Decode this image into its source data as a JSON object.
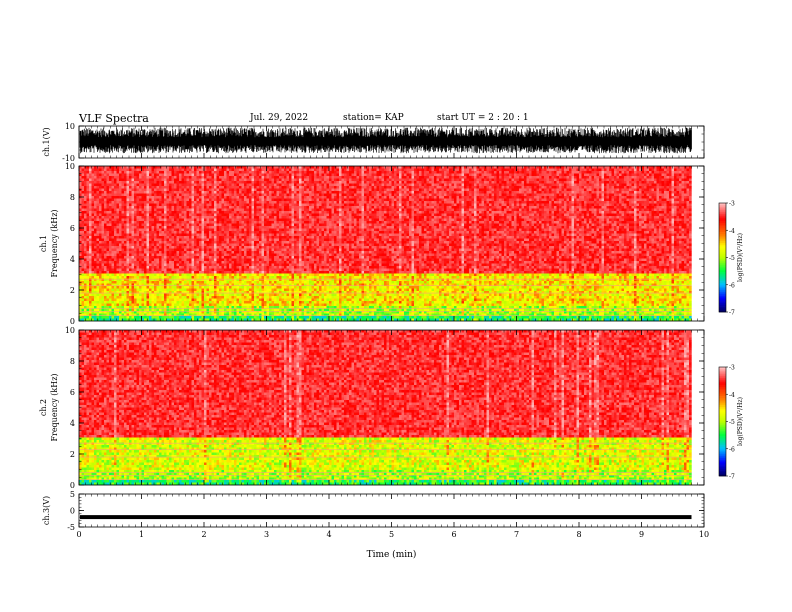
{
  "header": {
    "title": "VLF Spectra",
    "date": "Jul. 29, 2022",
    "station": "station= KAP",
    "start": "start  UT =  2 : 20 : 1"
  },
  "chart_data": [
    {
      "type": "line",
      "panel": "ch1-waveform",
      "ylabel": "ch.1(V)",
      "ylim": [
        -10,
        10
      ],
      "yticks": [
        "10",
        "-10"
      ],
      "note_values": "dense oscillating waveform filling roughly -6 to +8 V over 0-9.8 min"
    },
    {
      "type": "heatmap",
      "panel": "ch1-spectrogram",
      "ylabel": "Frequency (kHz)",
      "channel_label": "ch.1",
      "ylim": [
        0,
        10
      ],
      "yticks": [
        "0",
        "2",
        "4",
        "6",
        "8",
        "10"
      ],
      "color_scale": {
        "label": "log(PSD)(V²/Hz)",
        "range": [
          -7,
          -3
        ],
        "ticks": [
          "-3",
          "-4",
          "-5",
          "-6",
          "-7"
        ],
        "colors": [
          "#000060",
          "#0000ff",
          "#00c0ff",
          "#00ff40",
          "#c0ff00",
          "#ffff00",
          "#ff8000",
          "#ff0000",
          "#ffc0c0"
        ]
      },
      "bands": [
        {
          "from_khz": 0.0,
          "to_khz": 0.3,
          "level": -5.5
        },
        {
          "from_khz": 0.3,
          "to_khz": 1.0,
          "level": -5.0
        },
        {
          "from_khz": 1.0,
          "to_khz": 3.0,
          "level": -4.6
        },
        {
          "from_khz": 3.0,
          "to_khz": 10.0,
          "level": -3.4
        }
      ]
    },
    {
      "type": "heatmap",
      "panel": "ch2-spectrogram",
      "ylabel": "Frequency (kHz)",
      "channel_label": "ch.2",
      "ylim": [
        0,
        10
      ],
      "yticks": [
        "0",
        "2",
        "4",
        "6",
        "8",
        "10"
      ],
      "color_scale": {
        "label": "log(PSD)(V²/Hz)",
        "range": [
          -7,
          -3
        ],
        "ticks": [
          "-3",
          "-4",
          "-5",
          "-6",
          "-7"
        ]
      },
      "bands": [
        {
          "from_khz": 0.0,
          "to_khz": 0.3,
          "level": -5.5
        },
        {
          "from_khz": 0.3,
          "to_khz": 1.0,
          "level": -5.0
        },
        {
          "from_khz": 1.0,
          "to_khz": 3.0,
          "level": -4.8
        },
        {
          "from_khz": 3.0,
          "to_khz": 10.0,
          "level": -3.4
        }
      ]
    },
    {
      "type": "line",
      "panel": "ch3-waveform",
      "ylabel": "ch.3(V)",
      "ylim": [
        -5,
        5
      ],
      "yticks": [
        "5",
        "0",
        "-5"
      ],
      "note_values": "thin band near -2 V across 0-9.8 min"
    }
  ],
  "xaxis": {
    "label": "Time (min)",
    "xlim": [
      0,
      10
    ],
    "ticks": [
      "0",
      "1",
      "2",
      "3",
      "4",
      "5",
      "6",
      "7",
      "8",
      "9",
      "10"
    ],
    "data_end_min": 9.8
  }
}
